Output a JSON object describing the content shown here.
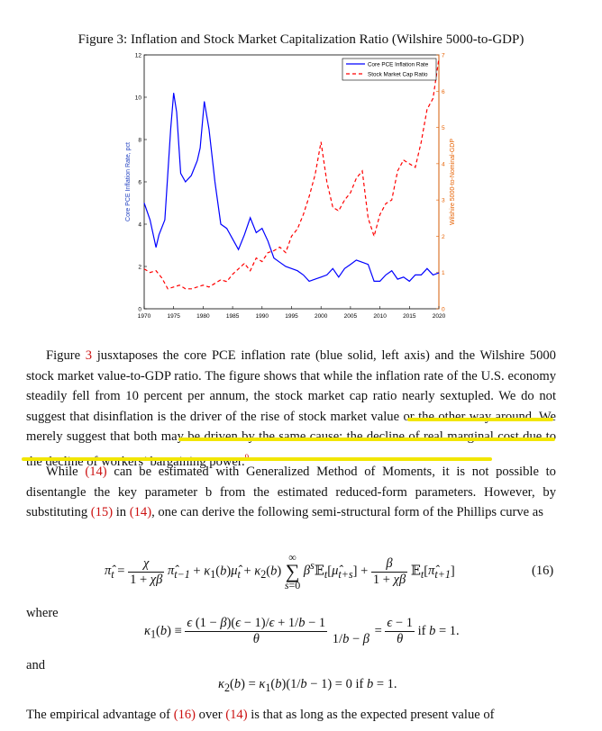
{
  "figure": {
    "caption": "Figure 3: Inflation and Stock Market Capitalization Ratio (Wilshire 5000-to-GDP)"
  },
  "chart_data": {
    "type": "line",
    "xlabel": "",
    "ylabel_left": "Core PCE Inflation Rate, pct",
    "ylabel_right": "Wilshire 5000-to-Nominal-GDP",
    "xlim": [
      1970,
      2020
    ],
    "ylim_left": [
      0,
      12
    ],
    "ylim_right": [
      0,
      7
    ],
    "x_ticks": [
      "1970",
      "1975",
      "1980",
      "1985",
      "1990",
      "1995",
      "2000",
      "2005",
      "2010",
      "2015",
      "2020"
    ],
    "y_ticks_left": [
      "0",
      "2",
      "4",
      "6",
      "8",
      "10",
      "12"
    ],
    "y_ticks_right": [
      "0",
      "1",
      "2",
      "3",
      "4",
      "5",
      "6",
      "7"
    ],
    "legend_position": "top-right",
    "colors": {
      "inflation": "#0000ff",
      "marketcap": "#ff0000",
      "right_axis": "#e66000"
    },
    "series": [
      {
        "name": "Core PCE Inflation Rate",
        "axis": "left",
        "style": "solid",
        "x": [
          1970.0,
          1971.0,
          1972.0,
          1972.5,
          1973.5,
          1974.5,
          1975.0,
          1975.5,
          1976.2,
          1977.0,
          1978.0,
          1979.0,
          1979.5,
          1980.2,
          1981.0,
          1982.0,
          1983.0,
          1984.0,
          1985.0,
          1986.0,
          1987.0,
          1988.0,
          1989.0,
          1990.0,
          1991.0,
          1992.0,
          1993.0,
          1994.0,
          1995.0,
          1996.0,
          1997.0,
          1998.0,
          1999.0,
          2000.0,
          2001.0,
          2002.0,
          2003.0,
          2004.0,
          2005.0,
          2006.0,
          2007.0,
          2008.0,
          2009.0,
          2010.0,
          2011.0,
          2012.0,
          2013.0,
          2014.0,
          2015.0,
          2016.0,
          2017.0,
          2018.0,
          2019.0,
          2020.0
        ],
        "values": [
          5.0,
          4.2,
          2.9,
          3.5,
          4.2,
          8.5,
          10.2,
          9.3,
          6.4,
          6.0,
          6.3,
          7.0,
          7.6,
          9.8,
          8.5,
          6.0,
          4.0,
          3.8,
          3.3,
          2.8,
          3.5,
          4.3,
          3.6,
          3.8,
          3.2,
          2.4,
          2.2,
          2.0,
          1.9,
          1.8,
          1.6,
          1.3,
          1.4,
          1.5,
          1.6,
          1.9,
          1.5,
          1.9,
          2.1,
          2.3,
          2.2,
          2.1,
          1.3,
          1.3,
          1.6,
          1.8,
          1.4,
          1.5,
          1.3,
          1.6,
          1.6,
          1.9,
          1.6,
          1.7
        ]
      },
      {
        "name": "Stock Market Cap Ratio",
        "axis": "right",
        "style": "dashed",
        "x": [
          1970.0,
          1971.0,
          1972.0,
          1973.0,
          1974.0,
          1975.0,
          1976.0,
          1977.0,
          1978.0,
          1979.0,
          1980.0,
          1981.0,
          1982.0,
          1983.0,
          1984.0,
          1985.0,
          1986.0,
          1987.0,
          1988.0,
          1989.0,
          1990.0,
          1991.0,
          1992.0,
          1993.0,
          1994.0,
          1995.0,
          1996.0,
          1997.0,
          1998.0,
          1999.0,
          2000.0,
          2001.0,
          2002.0,
          2003.0,
          2004.0,
          2005.0,
          2006.0,
          2007.0,
          2008.0,
          2009.0,
          2010.0,
          2011.0,
          2012.0,
          2013.0,
          2014.0,
          2015.0,
          2016.0,
          2017.0,
          2018.0,
          2019.0,
          2020.0
        ],
        "values": [
          1.1,
          1.0,
          1.05,
          0.85,
          0.55,
          0.6,
          0.65,
          0.55,
          0.55,
          0.6,
          0.65,
          0.6,
          0.7,
          0.8,
          0.75,
          0.95,
          1.1,
          1.25,
          1.05,
          1.4,
          1.3,
          1.55,
          1.6,
          1.7,
          1.55,
          2.0,
          2.2,
          2.6,
          3.1,
          3.7,
          4.6,
          3.5,
          2.8,
          2.7,
          3.0,
          3.2,
          3.6,
          3.8,
          2.5,
          2.0,
          2.6,
          2.9,
          3.0,
          3.8,
          4.1,
          4.0,
          3.9,
          4.6,
          5.5,
          5.8,
          6.9
        ]
      }
    ]
  },
  "body": {
    "p1": {
      "a": "Figure ",
      "ref1": "3",
      "b": " jusxtaposes the core PCE inflation rate (blue solid, left axis) and the Wilshire 5000 stock market value-to-GDP ratio. The figure shows that while the inflation rate of the U.S. economy steadily fell from 10 percent per annum, the stock market cap ratio nearly sextupled. We do not suggest that disinflation is the driver of the rise of stock market value or the other way around. We merely suggest that both may be driven by the same cause: the decline of real marginal cost due to the decline of workers’ bargaining power.",
      "note": "9"
    },
    "p2": {
      "a": "While ",
      "ref1": "(14)",
      "b": " can be estimated with Generalized Method of Moments, it is not possible to disentangle the key parameter b from the estimated reduced-form parameters. However, by substituting ",
      "ref2": "(15)",
      "c": " in ",
      "ref3": "(14)",
      "d": ", one can derive the following semi-structural form of the Phillips curve as"
    },
    "eq16_number": "(16)",
    "where": "where",
    "and": "and",
    "p3": {
      "a": "The empirical advantage of ",
      "ref1": "(16)",
      "b": " over ",
      "ref2": "(14)",
      "c": " is that as long as the expected present value of"
    }
  }
}
